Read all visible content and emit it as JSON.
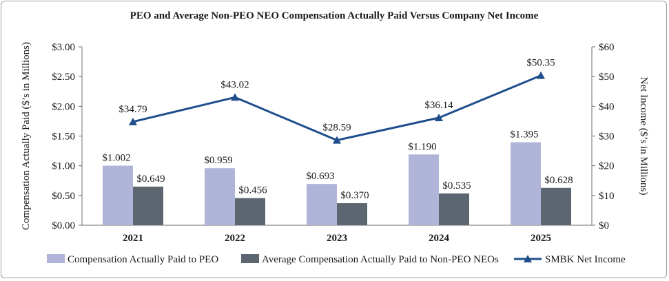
{
  "chart_data": {
    "type": "bar",
    "title": "PEO and Average Non-PEO NEO Compensation Actually Paid Versus Company Net Income",
    "categories": [
      "2021",
      "2022",
      "2023",
      "2024",
      "2025"
    ],
    "series": [
      {
        "name": "Compensation Actually Paid to PEO",
        "type": "bar",
        "axis": "left",
        "color": "#b0b4d8",
        "values": [
          1.002,
          0.959,
          0.693,
          1.19,
          1.395
        ],
        "labels": [
          "$1.002",
          "$0.959",
          "$0.693",
          "$1.190",
          "$1.395"
        ]
      },
      {
        "name": "Average Compensation Actually Paid to Non-PEO NEOs",
        "type": "bar",
        "axis": "left",
        "color": "#5c6670",
        "values": [
          0.649,
          0.456,
          0.37,
          0.535,
          0.628
        ],
        "labels": [
          "$0.649",
          "$0.456",
          "$0.370",
          "$0.535",
          "$0.628"
        ]
      },
      {
        "name": "SMBK Net Income",
        "type": "line",
        "axis": "right",
        "color": "#1f4e8c",
        "marker": "triangle",
        "values": [
          34.79,
          43.02,
          28.59,
          36.14,
          50.35
        ],
        "labels": [
          "$34.79",
          "$43.02",
          "$28.59",
          "$36.14",
          "$50.35"
        ]
      }
    ],
    "left_axis": {
      "label": "Compensation Actually Paid ($’s in Millions)",
      "range": [
        0,
        3
      ],
      "ticks": [
        0,
        0.5,
        1,
        1.5,
        2,
        2.5,
        3
      ],
      "tick_labels": [
        "$0.00",
        "$0.50",
        "$1.00",
        "$1.50",
        "$2.00",
        "$2.50",
        "$3.00"
      ]
    },
    "right_axis": {
      "label": "Net Income ($’s in Millions)",
      "range": [
        0,
        60
      ],
      "ticks": [
        0,
        10,
        20,
        30,
        40,
        50,
        60
      ],
      "tick_labels": [
        "$0",
        "$10",
        "$20",
        "$30",
        "$40",
        "$50",
        "$60"
      ]
    },
    "grid": false,
    "legend_position": "bottom"
  }
}
